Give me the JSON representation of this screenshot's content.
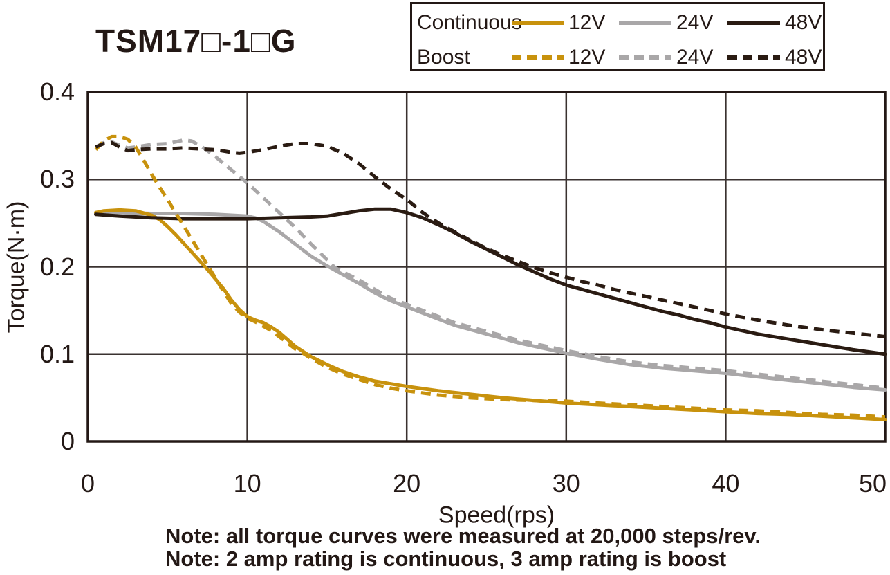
{
  "title": "TSM17□-1□G",
  "colors": {
    "gold": "#C8920D",
    "gray": "#A9A7A8",
    "dark": "#2A1B12",
    "axis": "#3A3230",
    "text": "#231815",
    "background": "#FFFFFF"
  },
  "legend": {
    "rows": [
      {
        "label": "Continuous",
        "style": "solid",
        "items": [
          {
            "label": "12V",
            "color": "gold"
          },
          {
            "label": "24V",
            "color": "gray"
          },
          {
            "label": "48V",
            "color": "dark"
          }
        ]
      },
      {
        "label": "Boost",
        "style": "dashed",
        "items": [
          {
            "label": "12V",
            "color": "gold"
          },
          {
            "label": "24V",
            "color": "gray"
          },
          {
            "label": "48V",
            "color": "dark"
          }
        ]
      }
    ]
  },
  "chart_data": {
    "type": "line",
    "title": "TSM17□-1□G",
    "xlabel": "Speed(rps)",
    "ylabel": "Torque(N·m)",
    "xlim": [
      0,
      50
    ],
    "ylim": [
      0,
      0.4
    ],
    "x_ticks": [
      0,
      10,
      20,
      30,
      40,
      50
    ],
    "y_ticks": [
      "0",
      "0.1",
      "0.2",
      "0.3",
      "0.4"
    ],
    "y_tick_values": [
      0,
      0.1,
      0.2,
      0.3,
      0.4
    ],
    "x_grid": [
      10,
      20,
      30,
      40
    ],
    "y_grid": [
      0.1,
      0.2,
      0.3
    ],
    "grid": true,
    "legend_position": "top-right",
    "series": [
      {
        "name": "Continuous 24V",
        "color": "gray",
        "dash": false,
        "points": [
          [
            0.5,
            0.262
          ],
          [
            2,
            0.262
          ],
          [
            4,
            0.261
          ],
          [
            6,
            0.261
          ],
          [
            8,
            0.26
          ],
          [
            9,
            0.259
          ],
          [
            10,
            0.258
          ],
          [
            10.5,
            0.256
          ],
          [
            11,
            0.252
          ],
          [
            12,
            0.24
          ],
          [
            13,
            0.226
          ],
          [
            14,
            0.212
          ],
          [
            15,
            0.201
          ],
          [
            16,
            0.191
          ],
          [
            17,
            0.181
          ],
          [
            18,
            0.17
          ],
          [
            19,
            0.161
          ],
          [
            20,
            0.154
          ],
          [
            21,
            0.147
          ],
          [
            22,
            0.14
          ],
          [
            23,
            0.133
          ],
          [
            24,
            0.128
          ],
          [
            25,
            0.123
          ],
          [
            26,
            0.118
          ],
          [
            27,
            0.113
          ],
          [
            28,
            0.109
          ],
          [
            29,
            0.105
          ],
          [
            30,
            0.101
          ],
          [
            32,
            0.094
          ],
          [
            34,
            0.088
          ],
          [
            36,
            0.084
          ],
          [
            38,
            0.081
          ],
          [
            40,
            0.078
          ],
          [
            42,
            0.074
          ],
          [
            44,
            0.07
          ],
          [
            46,
            0.066
          ],
          [
            48,
            0.062
          ],
          [
            50,
            0.059
          ]
        ]
      },
      {
        "name": "Continuous 12V",
        "color": "gold",
        "dash": false,
        "points": [
          [
            0.5,
            0.262
          ],
          [
            1,
            0.264
          ],
          [
            2,
            0.265
          ],
          [
            3,
            0.264
          ],
          [
            4,
            0.259
          ],
          [
            4.5,
            0.254
          ],
          [
            5,
            0.246
          ],
          [
            5.5,
            0.237
          ],
          [
            6,
            0.227
          ],
          [
            6.5,
            0.217
          ],
          [
            7,
            0.207
          ],
          [
            7.5,
            0.197
          ],
          [
            8,
            0.186
          ],
          [
            8.5,
            0.175
          ],
          [
            9,
            0.162
          ],
          [
            9.5,
            0.151
          ],
          [
            10,
            0.143
          ],
          [
            10.5,
            0.139
          ],
          [
            11,
            0.136
          ],
          [
            11.5,
            0.131
          ],
          [
            12,
            0.125
          ],
          [
            12.5,
            0.117
          ],
          [
            13,
            0.109
          ],
          [
            13.5,
            0.103
          ],
          [
            14,
            0.097
          ],
          [
            15,
            0.088
          ],
          [
            16,
            0.08
          ],
          [
            17,
            0.074
          ],
          [
            18,
            0.069
          ],
          [
            19,
            0.066
          ],
          [
            20,
            0.063
          ],
          [
            22,
            0.058
          ],
          [
            24,
            0.054
          ],
          [
            26,
            0.05
          ],
          [
            28,
            0.047
          ],
          [
            30,
            0.044
          ],
          [
            32,
            0.042
          ],
          [
            34,
            0.04
          ],
          [
            36,
            0.038
          ],
          [
            38,
            0.036
          ],
          [
            40,
            0.034
          ],
          [
            42,
            0.032
          ],
          [
            44,
            0.031
          ],
          [
            46,
            0.029
          ],
          [
            48,
            0.027
          ],
          [
            50,
            0.025
          ]
        ]
      },
      {
        "name": "Continuous 48V",
        "color": "dark",
        "dash": false,
        "points": [
          [
            0.5,
            0.26
          ],
          [
            2,
            0.258
          ],
          [
            4,
            0.256
          ],
          [
            6,
            0.255
          ],
          [
            8,
            0.255
          ],
          [
            10,
            0.255
          ],
          [
            12,
            0.256
          ],
          [
            14,
            0.257
          ],
          [
            15,
            0.258
          ],
          [
            16,
            0.261
          ],
          [
            17,
            0.264
          ],
          [
            18,
            0.266
          ],
          [
            19,
            0.266
          ],
          [
            20,
            0.262
          ],
          [
            21,
            0.256
          ],
          [
            22,
            0.248
          ],
          [
            23,
            0.239
          ],
          [
            24,
            0.229
          ],
          [
            25,
            0.22
          ],
          [
            26,
            0.211
          ],
          [
            27,
            0.202
          ],
          [
            28,
            0.194
          ],
          [
            29,
            0.186
          ],
          [
            30,
            0.179
          ],
          [
            31,
            0.174
          ],
          [
            32,
            0.169
          ],
          [
            33,
            0.164
          ],
          [
            34,
            0.159
          ],
          [
            35,
            0.154
          ],
          [
            36,
            0.149
          ],
          [
            37,
            0.145
          ],
          [
            38,
            0.14
          ],
          [
            39,
            0.136
          ],
          [
            40,
            0.131
          ],
          [
            42,
            0.123
          ],
          [
            44,
            0.117
          ],
          [
            46,
            0.111
          ],
          [
            48,
            0.105
          ],
          [
            50,
            0.1
          ]
        ]
      },
      {
        "name": "Boost 24V",
        "color": "gray",
        "dash": true,
        "points": [
          [
            0.5,
            0.337
          ],
          [
            1,
            0.342
          ],
          [
            1.5,
            0.343
          ],
          [
            2,
            0.339
          ],
          [
            2.5,
            0.336
          ],
          [
            3,
            0.337
          ],
          [
            4,
            0.34
          ],
          [
            5,
            0.341
          ],
          [
            5.5,
            0.343
          ],
          [
            6,
            0.345
          ],
          [
            6.5,
            0.344
          ],
          [
            7,
            0.339
          ],
          [
            7.5,
            0.333
          ],
          [
            8,
            0.326
          ],
          [
            9,
            0.311
          ],
          [
            10,
            0.296
          ],
          [
            11,
            0.279
          ],
          [
            12,
            0.262
          ],
          [
            13,
            0.245
          ],
          [
            14,
            0.226
          ],
          [
            15,
            0.208
          ],
          [
            15.5,
            0.199
          ],
          [
            16,
            0.194
          ],
          [
            17,
            0.185
          ],
          [
            18,
            0.174
          ],
          [
            19,
            0.164
          ],
          [
            20,
            0.157
          ],
          [
            21,
            0.15
          ],
          [
            22,
            0.143
          ],
          [
            23,
            0.136
          ],
          [
            24,
            0.131
          ],
          [
            25,
            0.126
          ],
          [
            26,
            0.121
          ],
          [
            27,
            0.116
          ],
          [
            28,
            0.112
          ],
          [
            29,
            0.108
          ],
          [
            30,
            0.104
          ],
          [
            32,
            0.097
          ],
          [
            34,
            0.091
          ],
          [
            36,
            0.087
          ],
          [
            38,
            0.084
          ],
          [
            40,
            0.081
          ],
          [
            42,
            0.077
          ],
          [
            44,
            0.073
          ],
          [
            46,
            0.069
          ],
          [
            48,
            0.065
          ],
          [
            50,
            0.061
          ]
        ]
      },
      {
        "name": "Boost 12V",
        "color": "gold",
        "dash": true,
        "points": [
          [
            0.5,
            0.334
          ],
          [
            1,
            0.344
          ],
          [
            1.5,
            0.349
          ],
          [
            2,
            0.349
          ],
          [
            2.5,
            0.346
          ],
          [
            3,
            0.337
          ],
          [
            3.5,
            0.322
          ],
          [
            4,
            0.306
          ],
          [
            4.5,
            0.291
          ],
          [
            5,
            0.277
          ],
          [
            5.5,
            0.262
          ],
          [
            6,
            0.247
          ],
          [
            6.5,
            0.232
          ],
          [
            7,
            0.217
          ],
          [
            7.5,
            0.202
          ],
          [
            8,
            0.187
          ],
          [
            8.5,
            0.172
          ],
          [
            9,
            0.158
          ],
          [
            9.5,
            0.148
          ],
          [
            10,
            0.141
          ],
          [
            10.5,
            0.137
          ],
          [
            11,
            0.132
          ],
          [
            11.5,
            0.127
          ],
          [
            12,
            0.12
          ],
          [
            12.5,
            0.113
          ],
          [
            13,
            0.106
          ],
          [
            13.5,
            0.101
          ],
          [
            14,
            0.095
          ],
          [
            15,
            0.085
          ],
          [
            16,
            0.077
          ],
          [
            17,
            0.071
          ],
          [
            18,
            0.065
          ],
          [
            19,
            0.061
          ],
          [
            20,
            0.058
          ],
          [
            22,
            0.053
          ],
          [
            24,
            0.05
          ],
          [
            26,
            0.048
          ],
          [
            28,
            0.047
          ],
          [
            30,
            0.046
          ],
          [
            32,
            0.044
          ],
          [
            34,
            0.042
          ],
          [
            36,
            0.04
          ],
          [
            38,
            0.038
          ],
          [
            40,
            0.036
          ],
          [
            42,
            0.035
          ],
          [
            44,
            0.033
          ],
          [
            46,
            0.031
          ],
          [
            48,
            0.03
          ],
          [
            50,
            0.028
          ]
        ]
      },
      {
        "name": "Boost 48V",
        "color": "dark",
        "dash": true,
        "points": [
          [
            0.5,
            0.337
          ],
          [
            1,
            0.341
          ],
          [
            1.5,
            0.342
          ],
          [
            2,
            0.337
          ],
          [
            2.5,
            0.333
          ],
          [
            3,
            0.334
          ],
          [
            4,
            0.335
          ],
          [
            5,
            0.335
          ],
          [
            6,
            0.336
          ],
          [
            7,
            0.335
          ],
          [
            8,
            0.334
          ],
          [
            9,
            0.331
          ],
          [
            9.5,
            0.33
          ],
          [
            10,
            0.331
          ],
          [
            11,
            0.334
          ],
          [
            12,
            0.338
          ],
          [
            13,
            0.341
          ],
          [
            14,
            0.341
          ],
          [
            15,
            0.338
          ],
          [
            16,
            0.33
          ],
          [
            17,
            0.318
          ],
          [
            18,
            0.303
          ],
          [
            19,
            0.289
          ],
          [
            20,
            0.277
          ],
          [
            21,
            0.262
          ],
          [
            22,
            0.25
          ],
          [
            23,
            0.24
          ],
          [
            24,
            0.23
          ],
          [
            25,
            0.221
          ],
          [
            26,
            0.213
          ],
          [
            27,
            0.206
          ],
          [
            28,
            0.199
          ],
          [
            29,
            0.193
          ],
          [
            30,
            0.188
          ],
          [
            31,
            0.183
          ],
          [
            32,
            0.179
          ],
          [
            33,
            0.174
          ],
          [
            34,
            0.17
          ],
          [
            35,
            0.166
          ],
          [
            36,
            0.162
          ],
          [
            37,
            0.158
          ],
          [
            38,
            0.154
          ],
          [
            39,
            0.15
          ],
          [
            40,
            0.146
          ],
          [
            42,
            0.139
          ],
          [
            44,
            0.133
          ],
          [
            46,
            0.128
          ],
          [
            48,
            0.124
          ],
          [
            50,
            0.12
          ]
        ]
      }
    ]
  },
  "notes": {
    "line1": "Note: all torque curves were measured at 20,000 steps/rev.",
    "line2": "Note: 2 amp rating is continuous, 3 amp rating is boost"
  }
}
